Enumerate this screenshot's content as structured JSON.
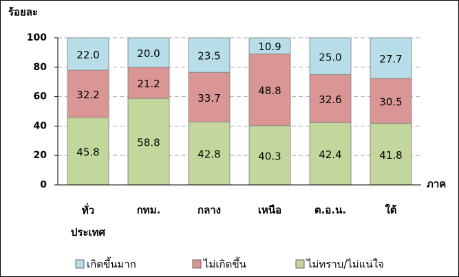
{
  "chart_data": {
    "type": "stacked_bar",
    "y_label": "ร้อยละ",
    "x_label": "ภาค",
    "categories": [
      "ทั่ว\nประเทศ",
      "กทม.",
      "กลาง",
      "เหนือ",
      "ต.อ.น.",
      "ใต้"
    ],
    "series": [
      {
        "name": "ไม่ทราบ/ไม่แน่ใจ",
        "color": "#c3d69b",
        "values": [
          45.8,
          58.8,
          42.8,
          40.3,
          42.4,
          41.8
        ],
        "value_labels": [
          "45.8",
          "58.8",
          "42.8",
          "40.3",
          "42.4",
          "41.8"
        ]
      },
      {
        "name": "ไม่เกิดขึ้น",
        "color": "#d99694",
        "values": [
          32.2,
          21.2,
          33.7,
          48.8,
          32.6,
          30.5
        ],
        "value_labels": [
          "32.2",
          "21.2",
          "33.7",
          "48.8",
          "32.6",
          "30.5"
        ]
      },
      {
        "name": "เกิดขึ้นมาก",
        "color": "#b7dde8",
        "values": [
          22.0,
          20.0,
          23.5,
          10.9,
          25.0,
          27.7
        ],
        "value_labels": [
          "22.0",
          "20.0",
          "23.5",
          "10.9",
          "25.0",
          "27.7"
        ]
      }
    ],
    "ylim": [
      0,
      100
    ],
    "yticks": [
      0,
      20,
      40,
      60,
      80,
      100
    ],
    "grid": true
  }
}
